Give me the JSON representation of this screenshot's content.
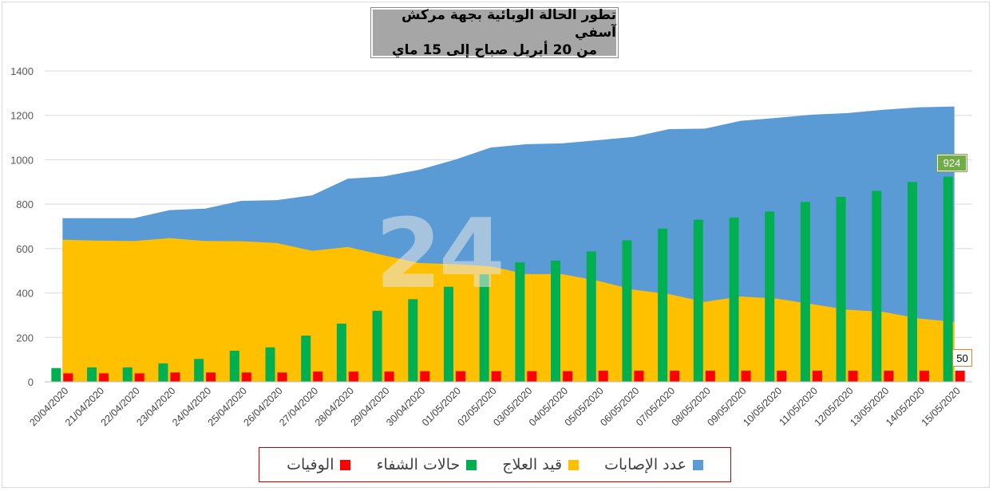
{
  "title": {
    "line1": "تطور الحالة الوبائية بجهة مركش آسفي",
    "line2": "من 20 أبريل صباح إلى 15 ماي"
  },
  "watermark": "24",
  "chart_data": {
    "type": "area",
    "categories": [
      "20/04/2020",
      "21/04/2020",
      "22/04/2020",
      "23/04/2020",
      "24/04/2020",
      "25/04/2020",
      "26/04/2020",
      "27/04/2020",
      "28/04/2020",
      "29/04/2020",
      "30/04/2020",
      "01/05/2020",
      "02/05/2020",
      "03/05/2020",
      "04/05/2020",
      "05/05/2020",
      "06/05/2020",
      "07/05/2020",
      "08/05/2020",
      "09/05/2020",
      "10/05/2020",
      "11/05/2020",
      "12/05/2020",
      "13/05/2020",
      "14/05/2020",
      "15/05/2020"
    ],
    "ylim": [
      0,
      1400
    ],
    "yticks": [
      0,
      200,
      400,
      600,
      800,
      1000,
      1200,
      1400
    ],
    "grid": true,
    "series": [
      {
        "name": "عدد الإصابات",
        "kind": "area",
        "color": "#5b9bd5",
        "values": [
          737,
          737,
          737,
          773,
          780,
          815,
          818,
          840,
          915,
          925,
          955,
          1000,
          1055,
          1070,
          1074,
          1088,
          1103,
          1138,
          1140,
          1175,
          1188,
          1203,
          1210,
          1225,
          1236,
          1240
        ]
      },
      {
        "name": "قيد العلاج",
        "kind": "area",
        "color": "#ffc000",
        "values": [
          640,
          636,
          634,
          647,
          634,
          633,
          625,
          590,
          607,
          570,
          535,
          530,
          520,
          485,
          485,
          455,
          415,
          395,
          360,
          384,
          375,
          350,
          325,
          315,
          285,
          270
        ]
      },
      {
        "name": "حالات الشفاء",
        "kind": "bar",
        "color": "#00b050",
        "values": [
          62,
          65,
          65,
          83,
          103,
          140,
          155,
          208,
          262,
          320,
          372,
          428,
          484,
          538,
          546,
          587,
          637,
          690,
          730,
          740,
          767,
          810,
          833,
          860,
          900,
          924
        ]
      },
      {
        "name": "الوفيات",
        "kind": "bar",
        "color": "#ff0000",
        "values": [
          38,
          38,
          38,
          42,
          42,
          42,
          42,
          46,
          46,
          46,
          48,
          48,
          48,
          48,
          48,
          50,
          50,
          50,
          50,
          50,
          50,
          50,
          50,
          50,
          50,
          50
        ]
      }
    ],
    "annotations": [
      {
        "series": "حالات الشفاء",
        "label": "924"
      },
      {
        "series": "الوفيات",
        "label": "50"
      }
    ],
    "legend_position": "bottom"
  }
}
